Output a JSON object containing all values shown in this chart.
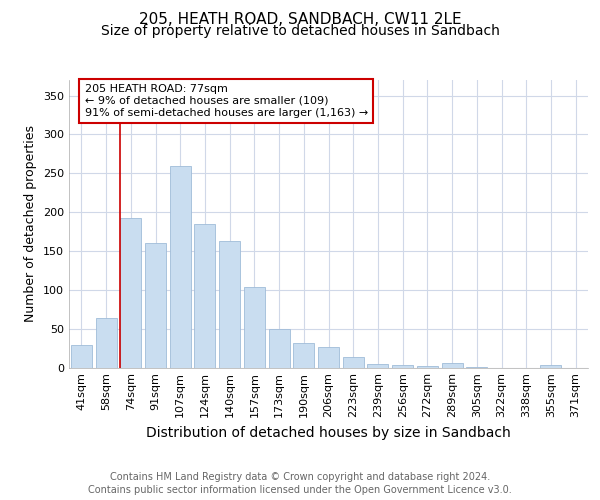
{
  "title1": "205, HEATH ROAD, SANDBACH, CW11 2LE",
  "title2": "Size of property relative to detached houses in Sandbach",
  "xlabel": "Distribution of detached houses by size in Sandbach",
  "ylabel": "Number of detached properties",
  "categories": [
    "41sqm",
    "58sqm",
    "74sqm",
    "91sqm",
    "107sqm",
    "124sqm",
    "140sqm",
    "157sqm",
    "173sqm",
    "190sqm",
    "206sqm",
    "223sqm",
    "239sqm",
    "256sqm",
    "272sqm",
    "289sqm",
    "305sqm",
    "322sqm",
    "338sqm",
    "355sqm",
    "371sqm"
  ],
  "values": [
    29,
    64,
    193,
    160,
    259,
    185,
    163,
    103,
    49,
    31,
    27,
    13,
    5,
    3,
    2,
    6,
    1,
    0,
    0,
    3,
    0
  ],
  "bar_color": "#c9ddf0",
  "bar_edge_color": "#a0bcd8",
  "vline_x_idx": 2,
  "annotation_text": "205 HEATH ROAD: 77sqm\n← 9% of detached houses are smaller (109)\n91% of semi-detached houses are larger (1,163) →",
  "annotation_box_color": "#ffffff",
  "annotation_box_edge": "#cc0000",
  "vline_color": "#cc0000",
  "footer1": "Contains HM Land Registry data © Crown copyright and database right 2024.",
  "footer2": "Contains public sector information licensed under the Open Government Licence v3.0.",
  "ylim": [
    0,
    370
  ],
  "yticks": [
    0,
    50,
    100,
    150,
    200,
    250,
    300,
    350
  ],
  "bg_color": "#ffffff",
  "grid_color": "#d0d8e8",
  "title1_fontsize": 11,
  "title2_fontsize": 10,
  "xlabel_fontsize": 10,
  "ylabel_fontsize": 9,
  "tick_fontsize": 8,
  "annot_fontsize": 8,
  "footer_fontsize": 7
}
